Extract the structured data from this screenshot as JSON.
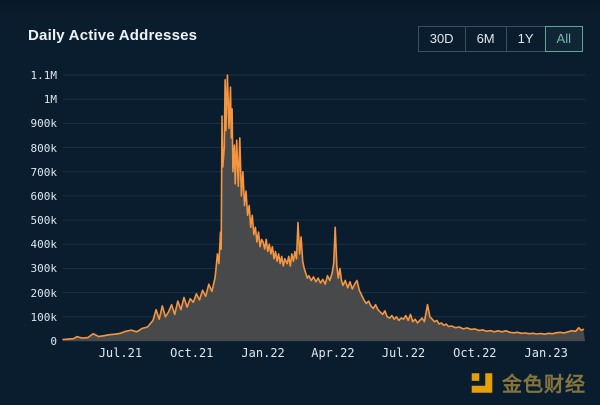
{
  "header": {
    "title": "Daily Active Addresses"
  },
  "range_buttons": [
    {
      "label": "30D",
      "active": false
    },
    {
      "label": "6M",
      "active": false
    },
    {
      "label": "1Y",
      "active": false
    },
    {
      "label": "All",
      "active": true
    }
  ],
  "watermark": {
    "text": "金色财经",
    "logo_color": "#f2a602",
    "text_color": "#8a7a3d"
  },
  "colors": {
    "background": "#0a1d2f",
    "line": "#f6953f",
    "area_fill": "#48494a",
    "grid": "rgba(190,215,235,0.10)",
    "active_button": "#74b9ac"
  },
  "chart_data": {
    "type": "area",
    "title": "Daily Active Addresses",
    "xlabel": "",
    "ylabel": "",
    "grid": true,
    "legend": "none",
    "ylim": [
      0,
      1100000
    ],
    "x_range": [
      "2021-04-18",
      "2023-02-20"
    ],
    "y_ticks": [
      {
        "label": "0",
        "value": 0
      },
      {
        "label": "100k",
        "value": 100000
      },
      {
        "label": "200k",
        "value": 200000
      },
      {
        "label": "300k",
        "value": 300000
      },
      {
        "label": "400k",
        "value": 400000
      },
      {
        "label": "500k",
        "value": 500000
      },
      {
        "label": "600k",
        "value": 600000
      },
      {
        "label": "700k",
        "value": 700000
      },
      {
        "label": "800k",
        "value": 800000
      },
      {
        "label": "900k",
        "value": 900000
      },
      {
        "label": "1M",
        "value": 1000000
      },
      {
        "label": "1.1M",
        "value": 1100000
      }
    ],
    "x_ticks": [
      {
        "label": "Jul.21",
        "date": "2021-07-01"
      },
      {
        "label": "Oct.21",
        "date": "2021-10-01"
      },
      {
        "label": "Jan.22",
        "date": "2022-01-01"
      },
      {
        "label": "Apr.22",
        "date": "2022-04-01"
      },
      {
        "label": "Jul.22",
        "date": "2022-07-01"
      },
      {
        "label": "Oct.22",
        "date": "2022-10-01"
      },
      {
        "label": "Jan.23",
        "date": "2023-01-01"
      }
    ],
    "series": [
      {
        "name": "Daily Active Addresses",
        "color": "#f6953f",
        "fill": "#48494a",
        "points": [
          [
            "2021-04-18",
            6000
          ],
          [
            "2021-04-25",
            8000
          ],
          [
            "2021-05-02",
            10000
          ],
          [
            "2021-05-06",
            18000
          ],
          [
            "2021-05-13",
            12000
          ],
          [
            "2021-05-20",
            14000
          ],
          [
            "2021-05-27",
            30000
          ],
          [
            "2021-06-03",
            18000
          ],
          [
            "2021-06-10",
            22000
          ],
          [
            "2021-06-17",
            26000
          ],
          [
            "2021-06-24",
            28000
          ],
          [
            "2021-07-01",
            32000
          ],
          [
            "2021-07-08",
            40000
          ],
          [
            "2021-07-15",
            45000
          ],
          [
            "2021-07-22",
            38000
          ],
          [
            "2021-07-29",
            52000
          ],
          [
            "2021-08-05",
            58000
          ],
          [
            "2021-08-12",
            85000
          ],
          [
            "2021-08-16",
            130000
          ],
          [
            "2021-08-20",
            90000
          ],
          [
            "2021-08-24",
            145000
          ],
          [
            "2021-08-28",
            100000
          ],
          [
            "2021-09-01",
            120000
          ],
          [
            "2021-09-05",
            150000
          ],
          [
            "2021-09-09",
            110000
          ],
          [
            "2021-09-13",
            165000
          ],
          [
            "2021-09-17",
            130000
          ],
          [
            "2021-09-21",
            180000
          ],
          [
            "2021-09-25",
            140000
          ],
          [
            "2021-09-29",
            175000
          ],
          [
            "2021-10-03",
            160000
          ],
          [
            "2021-10-07",
            195000
          ],
          [
            "2021-10-11",
            170000
          ],
          [
            "2021-10-15",
            210000
          ],
          [
            "2021-10-19",
            185000
          ],
          [
            "2021-10-23",
            235000
          ],
          [
            "2021-10-27",
            205000
          ],
          [
            "2021-10-31",
            260000
          ],
          [
            "2021-11-01",
            290000
          ],
          [
            "2021-11-03",
            360000
          ],
          [
            "2021-11-05",
            320000
          ],
          [
            "2021-11-07",
            450000
          ],
          [
            "2021-11-08",
            380000
          ],
          [
            "2021-11-09",
            930000
          ],
          [
            "2021-11-10",
            720000
          ],
          [
            "2021-11-12",
            800000
          ],
          [
            "2021-11-13",
            1080000
          ],
          [
            "2021-11-14",
            870000
          ],
          [
            "2021-11-16",
            1100000
          ],
          [
            "2021-11-18",
            880000
          ],
          [
            "2021-11-20",
            1050000
          ],
          [
            "2021-11-21",
            840000
          ],
          [
            "2021-11-22",
            960000
          ],
          [
            "2021-11-23",
            700000
          ],
          [
            "2021-11-25",
            810000
          ],
          [
            "2021-11-26",
            650000
          ],
          [
            "2021-11-28",
            830000
          ],
          [
            "2021-11-30",
            640000
          ],
          [
            "2021-12-02",
            840000
          ],
          [
            "2021-12-04",
            600000
          ],
          [
            "2021-12-06",
            700000
          ],
          [
            "2021-12-08",
            560000
          ],
          [
            "2021-12-10",
            620000
          ],
          [
            "2021-12-12",
            520000
          ],
          [
            "2021-12-14",
            560000
          ],
          [
            "2021-12-16",
            470000
          ],
          [
            "2021-12-18",
            520000
          ],
          [
            "2021-12-20",
            440000
          ],
          [
            "2021-12-22",
            470000
          ],
          [
            "2021-12-24",
            410000
          ],
          [
            "2021-12-26",
            450000
          ],
          [
            "2021-12-28",
            390000
          ],
          [
            "2021-12-30",
            420000
          ],
          [
            "2022-01-01",
            410000
          ],
          [
            "2022-01-03",
            380000
          ],
          [
            "2022-01-05",
            420000
          ],
          [
            "2022-01-07",
            370000
          ],
          [
            "2022-01-09",
            400000
          ],
          [
            "2022-01-11",
            360000
          ],
          [
            "2022-01-13",
            390000
          ],
          [
            "2022-01-15",
            340000
          ],
          [
            "2022-01-17",
            370000
          ],
          [
            "2022-01-19",
            330000
          ],
          [
            "2022-01-21",
            360000
          ],
          [
            "2022-01-23",
            320000
          ],
          [
            "2022-01-25",
            350000
          ],
          [
            "2022-01-27",
            310000
          ],
          [
            "2022-01-29",
            340000
          ],
          [
            "2022-02-01",
            320000
          ],
          [
            "2022-02-03",
            350000
          ],
          [
            "2022-02-05",
            310000
          ],
          [
            "2022-02-07",
            360000
          ],
          [
            "2022-02-09",
            330000
          ],
          [
            "2022-02-11",
            370000
          ],
          [
            "2022-02-13",
            340000
          ],
          [
            "2022-02-15",
            490000
          ],
          [
            "2022-02-17",
            360000
          ],
          [
            "2022-02-19",
            430000
          ],
          [
            "2022-02-21",
            330000
          ],
          [
            "2022-02-23",
            300000
          ],
          [
            "2022-02-25",
            280000
          ],
          [
            "2022-02-27",
            260000
          ],
          [
            "2022-03-01",
            270000
          ],
          [
            "2022-03-04",
            250000
          ],
          [
            "2022-03-07",
            265000
          ],
          [
            "2022-03-10",
            245000
          ],
          [
            "2022-03-13",
            260000
          ],
          [
            "2022-03-16",
            240000
          ],
          [
            "2022-03-19",
            255000
          ],
          [
            "2022-03-22",
            235000
          ],
          [
            "2022-03-25",
            270000
          ],
          [
            "2022-03-28",
            250000
          ],
          [
            "2022-03-31",
            280000
          ],
          [
            "2022-04-02",
            320000
          ],
          [
            "2022-04-04",
            470000
          ],
          [
            "2022-04-06",
            310000
          ],
          [
            "2022-04-08",
            260000
          ],
          [
            "2022-04-10",
            300000
          ],
          [
            "2022-04-12",
            250000
          ],
          [
            "2022-04-14",
            230000
          ],
          [
            "2022-04-17",
            250000
          ],
          [
            "2022-04-20",
            220000
          ],
          [
            "2022-04-23",
            245000
          ],
          [
            "2022-04-26",
            215000
          ],
          [
            "2022-04-29",
            235000
          ],
          [
            "2022-05-02",
            250000
          ],
          [
            "2022-05-05",
            210000
          ],
          [
            "2022-05-08",
            190000
          ],
          [
            "2022-05-11",
            170000
          ],
          [
            "2022-05-14",
            155000
          ],
          [
            "2022-05-17",
            165000
          ],
          [
            "2022-05-20",
            145000
          ],
          [
            "2022-05-23",
            135000
          ],
          [
            "2022-05-26",
            150000
          ],
          [
            "2022-05-29",
            130000
          ],
          [
            "2022-06-01",
            120000
          ],
          [
            "2022-06-04",
            110000
          ],
          [
            "2022-06-07",
            125000
          ],
          [
            "2022-06-10",
            100000
          ],
          [
            "2022-06-13",
            95000
          ],
          [
            "2022-06-16",
            105000
          ],
          [
            "2022-06-19",
            90000
          ],
          [
            "2022-06-22",
            100000
          ],
          [
            "2022-06-25",
            85000
          ],
          [
            "2022-06-28",
            95000
          ],
          [
            "2022-07-01",
            90000
          ],
          [
            "2022-07-04",
            105000
          ],
          [
            "2022-07-07",
            85000
          ],
          [
            "2022-07-10",
            110000
          ],
          [
            "2022-07-13",
            80000
          ],
          [
            "2022-07-16",
            90000
          ],
          [
            "2022-07-19",
            75000
          ],
          [
            "2022-07-22",
            85000
          ],
          [
            "2022-07-25",
            95000
          ],
          [
            "2022-07-28",
            80000
          ],
          [
            "2022-08-01",
            150000
          ],
          [
            "2022-08-04",
            100000
          ],
          [
            "2022-08-07",
            90000
          ],
          [
            "2022-08-10",
            80000
          ],
          [
            "2022-08-13",
            85000
          ],
          [
            "2022-08-16",
            70000
          ],
          [
            "2022-08-19",
            75000
          ],
          [
            "2022-08-22",
            65000
          ],
          [
            "2022-08-25",
            70000
          ],
          [
            "2022-08-28",
            60000
          ],
          [
            "2022-09-01",
            62000
          ],
          [
            "2022-09-06",
            55000
          ],
          [
            "2022-09-11",
            58000
          ],
          [
            "2022-09-16",
            50000
          ],
          [
            "2022-09-21",
            54000
          ],
          [
            "2022-09-26",
            48000
          ],
          [
            "2022-10-01",
            50000
          ],
          [
            "2022-10-06",
            44000
          ],
          [
            "2022-10-11",
            46000
          ],
          [
            "2022-10-16",
            40000
          ],
          [
            "2022-10-21",
            43000
          ],
          [
            "2022-10-26",
            38000
          ],
          [
            "2022-10-31",
            42000
          ],
          [
            "2022-11-05",
            38000
          ],
          [
            "2022-11-10",
            42000
          ],
          [
            "2022-11-15",
            36000
          ],
          [
            "2022-11-20",
            34000
          ],
          [
            "2022-11-25",
            36000
          ],
          [
            "2022-11-30",
            32000
          ],
          [
            "2022-12-05",
            33000
          ],
          [
            "2022-12-10",
            30000
          ],
          [
            "2022-12-15",
            32000
          ],
          [
            "2022-12-20",
            29000
          ],
          [
            "2022-12-25",
            31000
          ],
          [
            "2022-12-30",
            28000
          ],
          [
            "2023-01-04",
            32000
          ],
          [
            "2023-01-09",
            30000
          ],
          [
            "2023-01-14",
            34000
          ],
          [
            "2023-01-19",
            36000
          ],
          [
            "2023-01-24",
            33000
          ],
          [
            "2023-01-29",
            38000
          ],
          [
            "2023-02-03",
            42000
          ],
          [
            "2023-02-08",
            40000
          ],
          [
            "2023-02-12",
            55000
          ],
          [
            "2023-02-15",
            44000
          ],
          [
            "2023-02-18",
            48000
          ]
        ]
      }
    ]
  }
}
